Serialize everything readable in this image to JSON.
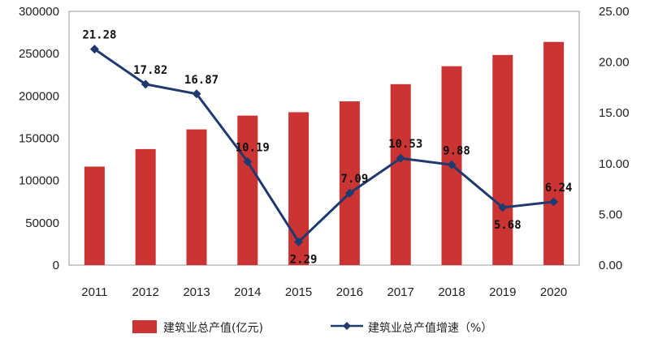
{
  "chart_data": {
    "type": "bar+line",
    "categories": [
      "2011",
      "2012",
      "2013",
      "2014",
      "2015",
      "2016",
      "2017",
      "2018",
      "2019",
      "2020"
    ],
    "series": [
      {
        "name": "建筑业总产值(亿元)",
        "type": "bar",
        "axis": "left",
        "color": "#cc3333",
        "values": [
          116500,
          137200,
          160400,
          176700,
          180800,
          193600,
          213900,
          235100,
          248400,
          263900
        ]
      },
      {
        "name": "建筑业总产值增速（%）",
        "type": "line",
        "axis": "right",
        "color": "#1f3a6e",
        "values": [
          21.28,
          17.82,
          16.87,
          10.19,
          2.29,
          7.09,
          10.53,
          9.88,
          5.68,
          6.24
        ],
        "labels": [
          "21.28",
          "17.82",
          "16.87",
          "10.19",
          "2.29",
          "7.09",
          "10.53",
          "9.88",
          "5.68",
          "6.24"
        ]
      }
    ],
    "y_left": {
      "range": [
        0,
        300000
      ],
      "ticks": [
        "0",
        "50000",
        "100000",
        "150000",
        "200000",
        "250000",
        "300000"
      ]
    },
    "y_right": {
      "range": [
        0,
        25
      ],
      "ticks": [
        "0.00",
        "5.00",
        "10.00",
        "15.00",
        "20.00",
        "25.00"
      ]
    },
    "grid": false,
    "legend_position": "bottom"
  }
}
